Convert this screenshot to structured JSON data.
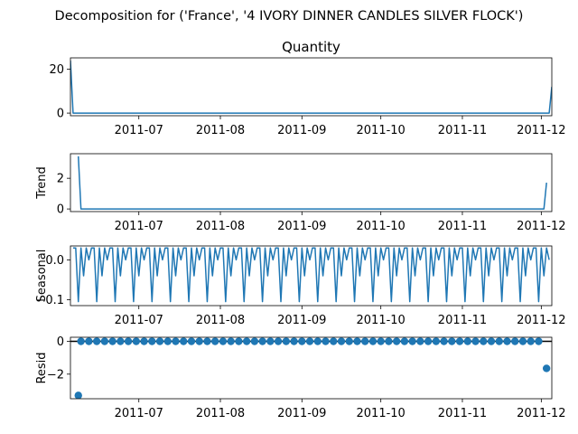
{
  "chart_data": {
    "type": "line",
    "suptitle": "Decomposition for ('France', '4 IVORY DINNER CANDLES SILVER FLOCK')",
    "x_ticks": [
      "2011-07",
      "2011-08",
      "2011-09",
      "2011-10",
      "2011-11",
      "2011-12"
    ],
    "x_tick_dates": [
      "2011-07-01",
      "2011-08-01",
      "2011-09-01",
      "2011-10-01",
      "2011-11-01",
      "2011-12-01"
    ],
    "x_start": "2011-06-05",
    "x_end": "2011-12-05",
    "color": "#1f77b4",
    "panels": [
      {
        "title": "Quantity",
        "ylabel": "",
        "kind": "line",
        "ylim": [
          -1.2,
          25.2
        ],
        "yticks": [
          0,
          20
        ],
        "yticklabels": [
          "0",
          "20"
        ],
        "series": [
          {
            "x": "2011-06-05",
            "y": 24
          },
          {
            "x": "2011-06-06",
            "y": 0
          },
          {
            "x": "2011-12-04",
            "y": 0
          },
          {
            "x": "2011-12-05",
            "y": 12
          }
        ]
      },
      {
        "title": "",
        "ylabel": "Trend",
        "kind": "line",
        "ylim": [
          -0.17,
          3.6
        ],
        "yticks": [
          0,
          2
        ],
        "yticklabels": [
          "0",
          "2"
        ],
        "series": [
          {
            "x": "2011-06-08",
            "y": 3.43
          },
          {
            "x": "2011-06-09",
            "y": 0
          },
          {
            "x": "2011-12-02",
            "y": 0
          },
          {
            "x": "2011-12-03",
            "y": 1.71
          }
        ]
      },
      {
        "title": "",
        "ylabel": "Seasonal",
        "kind": "seasonal",
        "ylim": [
          -0.115,
          0.035
        ],
        "yticks": [
          0.0,
          -0.1
        ],
        "yticklabels": [
          "0.0",
          "−0.1"
        ],
        "pattern": [
          0.03,
          0.03,
          -0.105,
          0.03,
          -0.04,
          0.03,
          0.0
        ],
        "series_start": "2011-06-06",
        "series_end": "2011-12-04"
      },
      {
        "title": "",
        "ylabel": "Resid",
        "kind": "scatter",
        "ylim": [
          -3.5,
          0.25
        ],
        "yticks": [
          0,
          -2
        ],
        "yticklabels": [
          "0",
          "−2"
        ],
        "zero_line": true,
        "series_start": "2011-06-09",
        "series_end": "2011-12-02",
        "series_step_days": 3,
        "fill_value": 0,
        "outliers": [
          {
            "x": "2011-06-08",
            "y": -3.3
          },
          {
            "x": "2011-12-03",
            "y": -1.65
          }
        ]
      }
    ]
  }
}
